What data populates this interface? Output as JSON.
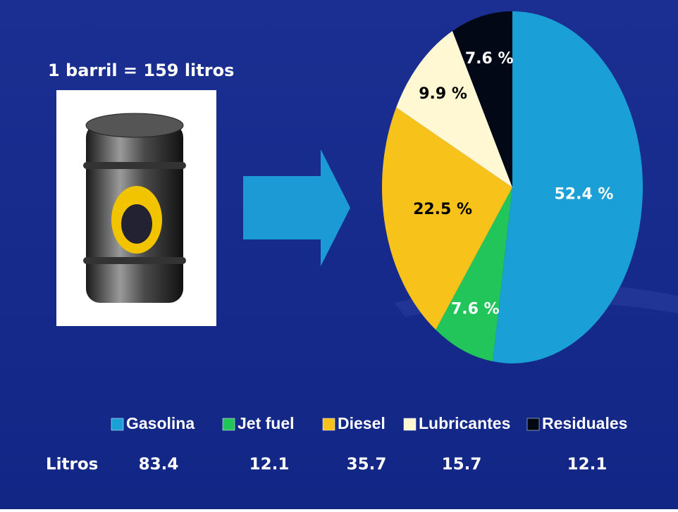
{
  "chart_data": {
    "type": "pie",
    "annotation": "1 barril = 159 litros",
    "categories": [
      "Gasolina",
      "Jet fuel",
      "Diesel",
      "Lubricantes",
      "Residuales"
    ],
    "values": [
      52.4,
      7.6,
      22.5,
      9.9,
      7.6
    ],
    "value_labels": [
      "52.4 %",
      "7.6 %",
      "22.5 %",
      "9.9 %",
      "7.6 %"
    ],
    "colors": [
      "#1a9fd6",
      "#22c55a",
      "#f7c21a",
      "#fff8d2",
      "#020816"
    ],
    "legend": "bottom",
    "table": {
      "row_label": "Litros",
      "values": [
        "83.4",
        "12.1",
        "35.7",
        "15.7",
        "12.1"
      ]
    }
  }
}
